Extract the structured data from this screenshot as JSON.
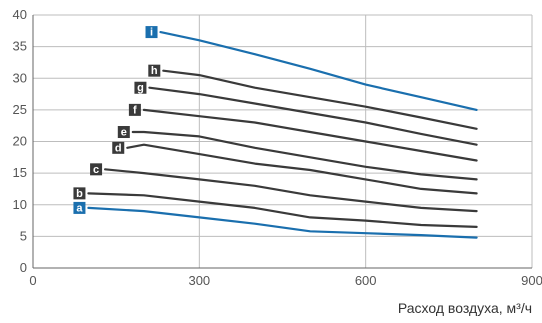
{
  "chart_data": {
    "type": "line",
    "title": "",
    "xlabel": "Расход воздуха, м³/ч",
    "ylabel": "",
    "xlim": [
      0,
      900
    ],
    "ylim": [
      0,
      40
    ],
    "x_ticks": [
      "0",
      "300",
      "600",
      "900"
    ],
    "y_ticks": [
      "0",
      "5",
      "10",
      "15",
      "20",
      "25",
      "30",
      "35",
      "40"
    ],
    "grid": true,
    "series": [
      {
        "name": "a",
        "color": "#1a6fae",
        "x": [
          100,
          200,
          300,
          400,
          500,
          600,
          700,
          800
        ],
        "values": [
          9.5,
          9.0,
          8.0,
          7.0,
          5.8,
          5.5,
          5.2,
          4.8
        ]
      },
      {
        "name": "b",
        "color": "#3a3a3a",
        "x": [
          100,
          200,
          300,
          400,
          500,
          600,
          700,
          800
        ],
        "values": [
          11.8,
          11.5,
          10.5,
          9.5,
          8.0,
          7.5,
          6.8,
          6.5
        ]
      },
      {
        "name": "c",
        "color": "#3a3a3a",
        "x": [
          130,
          200,
          300,
          400,
          500,
          600,
          700,
          800
        ],
        "values": [
          15.6,
          15.0,
          14.0,
          13.0,
          11.5,
          10.5,
          9.5,
          9.0
        ]
      },
      {
        "name": "d",
        "color": "#3a3a3a",
        "x": [
          170,
          200,
          300,
          400,
          500,
          600,
          700,
          800
        ],
        "values": [
          19.0,
          19.5,
          18.0,
          16.5,
          15.5,
          14.0,
          12.5,
          11.8
        ]
      },
      {
        "name": "e",
        "color": "#3a3a3a",
        "x": [
          180,
          200,
          300,
          400,
          500,
          600,
          700,
          800
        ],
        "values": [
          21.5,
          21.5,
          20.8,
          19.0,
          17.5,
          16.0,
          14.8,
          14.0
        ]
      },
      {
        "name": "f",
        "color": "#3a3a3a",
        "x": [
          200,
          300,
          400,
          500,
          600,
          700,
          800
        ],
        "values": [
          25.0,
          24.0,
          23.0,
          21.5,
          20.0,
          18.5,
          17.0
        ]
      },
      {
        "name": "g",
        "color": "#3a3a3a",
        "x": [
          210,
          300,
          400,
          500,
          600,
          700,
          800
        ],
        "values": [
          28.5,
          27.5,
          26.0,
          24.5,
          23.0,
          21.2,
          19.5
        ]
      },
      {
        "name": "h",
        "color": "#3a3a3a",
        "x": [
          235,
          300,
          400,
          500,
          600,
          700,
          800
        ],
        "values": [
          31.2,
          30.5,
          28.5,
          27.0,
          25.5,
          23.8,
          22.0
        ]
      },
      {
        "name": "i",
        "color": "#1a6fae",
        "x": [
          230,
          300,
          400,
          500,
          600,
          700,
          800
        ],
        "values": [
          37.3,
          36.0,
          33.8,
          31.5,
          29.0,
          27.0,
          25.0
        ]
      }
    ]
  }
}
